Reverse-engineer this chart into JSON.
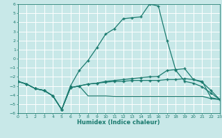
{
  "xlabel": "Humidex (Indice chaleur)",
  "bg_color": "#c8e8e8",
  "grid_color": "#ffffff",
  "line_color": "#1a7a6e",
  "xlim": [
    0,
    23
  ],
  "ylim": [
    -6,
    6
  ],
  "xticks": [
    0,
    1,
    2,
    3,
    4,
    5,
    6,
    7,
    8,
    9,
    10,
    11,
    12,
    13,
    14,
    15,
    16,
    17,
    18,
    19,
    20,
    21,
    22,
    23
  ],
  "yticks": [
    -6,
    -5,
    -4,
    -3,
    -2,
    -1,
    0,
    1,
    2,
    3,
    4,
    5,
    6
  ],
  "line1_x": [
    0,
    1,
    2,
    3,
    4,
    5,
    6,
    7,
    8,
    9,
    10,
    11,
    12,
    13,
    14,
    15,
    16,
    17,
    18,
    19,
    20,
    21,
    22,
    23
  ],
  "line1_y": [
    -2.5,
    -2.8,
    -3.3,
    -3.5,
    -4.1,
    -5.6,
    -3.0,
    -1.3,
    -0.2,
    1.2,
    2.7,
    3.3,
    4.4,
    4.5,
    4.6,
    6.0,
    5.8,
    2.0,
    -1.3,
    -2.5,
    -2.7,
    -3.1,
    -3.8,
    -4.5
  ],
  "line2_x": [
    0,
    1,
    2,
    3,
    4,
    5,
    6,
    7,
    8,
    9,
    10,
    11,
    12,
    13,
    14,
    15,
    16,
    17,
    18,
    19,
    20,
    21,
    22,
    23
  ],
  "line2_y": [
    -2.5,
    -2.8,
    -3.3,
    -3.5,
    -4.1,
    -5.6,
    -3.2,
    -3.0,
    -2.8,
    -2.7,
    -2.5,
    -2.4,
    -2.3,
    -2.2,
    -2.1,
    -2.0,
    -1.95,
    -1.3,
    -1.2,
    -1.1,
    -2.3,
    -2.6,
    -3.5,
    -4.5
  ],
  "line3_x": [
    0,
    1,
    2,
    3,
    4,
    5,
    6,
    7,
    8,
    9,
    10,
    11,
    12,
    13,
    14,
    15,
    16,
    17,
    18,
    19,
    20,
    21,
    22,
    23
  ],
  "line3_y": [
    -2.5,
    -2.8,
    -3.3,
    -3.5,
    -4.1,
    -5.6,
    -3.2,
    -3.0,
    -4.1,
    -4.1,
    -4.1,
    -4.15,
    -4.15,
    -4.15,
    -4.15,
    -4.15,
    -4.15,
    -4.15,
    -4.15,
    -4.15,
    -4.15,
    -4.15,
    -4.4,
    -4.5
  ],
  "line4_x": [
    0,
    1,
    2,
    3,
    4,
    5,
    6,
    7,
    8,
    9,
    10,
    11,
    12,
    13,
    14,
    15,
    16,
    17,
    18,
    19,
    20,
    21,
    22,
    23
  ],
  "line4_y": [
    -2.5,
    -2.8,
    -3.3,
    -3.5,
    -4.1,
    -5.6,
    -3.2,
    -3.0,
    -2.8,
    -2.7,
    -2.6,
    -2.5,
    -2.5,
    -2.4,
    -2.4,
    -2.4,
    -2.4,
    -2.3,
    -2.3,
    -2.2,
    -2.3,
    -2.5,
    -4.3,
    -4.5
  ]
}
